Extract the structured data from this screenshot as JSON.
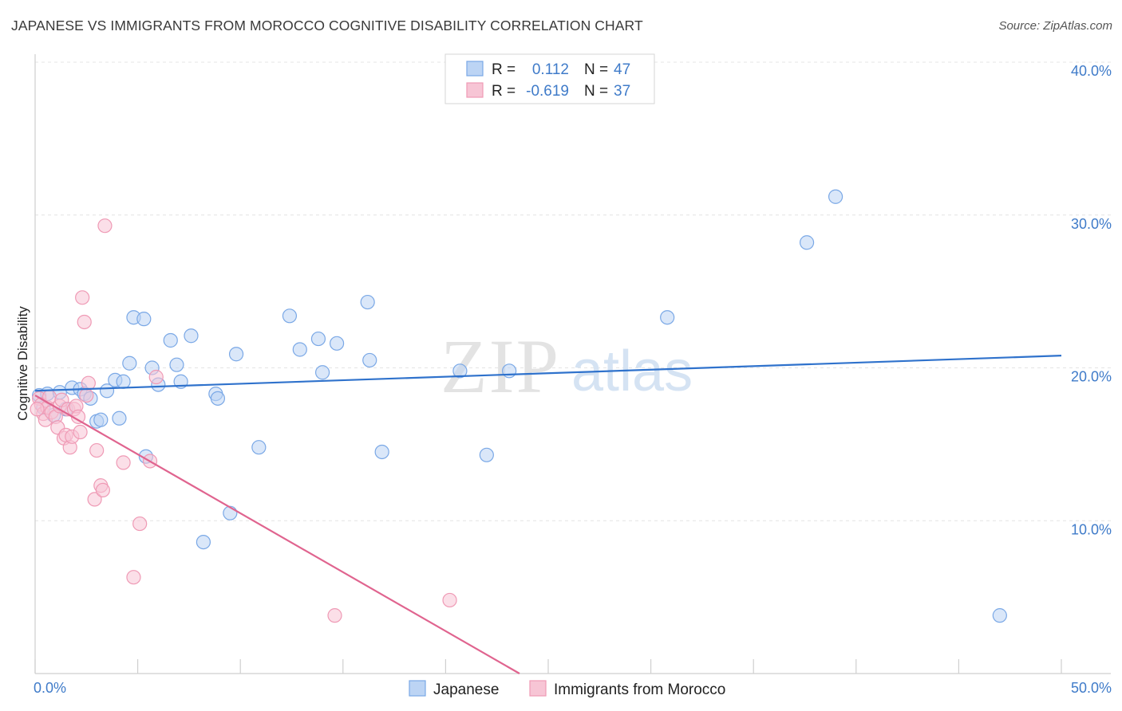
{
  "chart_data": {
    "type": "scatter",
    "title": "JAPANESE VS IMMIGRANTS FROM MOROCCO COGNITIVE DISABILITY CORRELATION CHART",
    "source": "Source: ZipAtlas.com",
    "xlabel": "",
    "ylabel": "Cognitive Disability",
    "xlim": [
      0,
      50
    ],
    "ylim": [
      0,
      40
    ],
    "x_tick_labels": [
      {
        "value": 0,
        "label": "0.0%"
      },
      {
        "value": 50,
        "label": "50.0%"
      }
    ],
    "y_tick_labels": [
      {
        "value": 10,
        "label": "10.0%"
      },
      {
        "value": 20,
        "label": "20.0%"
      },
      {
        "value": 30,
        "label": "30.0%"
      },
      {
        "value": 40,
        "label": "40.0%"
      }
    ],
    "watermark": {
      "zip": "ZIP",
      "atlas": "atlas"
    },
    "legend": {
      "rows": [
        {
          "r_label": "R =",
          "r_value": "0.112",
          "n_label": "N =",
          "n_value": "47"
        },
        {
          "r_label": "R =",
          "r_value": "-0.619",
          "n_label": "N =",
          "n_value": "37"
        }
      ]
    },
    "series": [
      {
        "name": "Japanese",
        "color": "#7aa8e6",
        "fill": "#bcd4f4",
        "line_color": "#2f72cc",
        "trend": {
          "x0": 0,
          "y0": 18.5,
          "x1": 50,
          "y1": 20.8
        },
        "points": [
          [
            0.2,
            18.2
          ],
          [
            0.4,
            17.4
          ],
          [
            0.6,
            18.3
          ],
          [
            0.9,
            16.9
          ],
          [
            1.2,
            18.4
          ],
          [
            1.5,
            17.3
          ],
          [
            1.8,
            18.7
          ],
          [
            2.2,
            18.6
          ],
          [
            2.4,
            18.3
          ],
          [
            2.7,
            18.0
          ],
          [
            3.0,
            16.5
          ],
          [
            3.2,
            16.6
          ],
          [
            3.5,
            18.5
          ],
          [
            3.9,
            19.2
          ],
          [
            4.1,
            16.7
          ],
          [
            4.3,
            19.1
          ],
          [
            4.6,
            20.3
          ],
          [
            4.8,
            23.3
          ],
          [
            5.3,
            23.2
          ],
          [
            5.4,
            14.2
          ],
          [
            5.7,
            20.0
          ],
          [
            6.0,
            18.9
          ],
          [
            6.6,
            21.8
          ],
          [
            6.9,
            20.2
          ],
          [
            7.1,
            19.1
          ],
          [
            7.6,
            22.1
          ],
          [
            8.2,
            8.6
          ],
          [
            8.8,
            18.3
          ],
          [
            8.9,
            18.0
          ],
          [
            9.5,
            10.5
          ],
          [
            9.8,
            20.9
          ],
          [
            10.9,
            14.8
          ],
          [
            12.4,
            23.4
          ],
          [
            12.9,
            21.2
          ],
          [
            13.8,
            21.9
          ],
          [
            14.0,
            19.7
          ],
          [
            14.7,
            21.6
          ],
          [
            16.2,
            24.3
          ],
          [
            16.3,
            20.5
          ],
          [
            16.9,
            14.5
          ],
          [
            20.7,
            19.8
          ],
          [
            22.0,
            14.3
          ],
          [
            23.1,
            19.8
          ],
          [
            30.8,
            23.3
          ],
          [
            37.6,
            28.2
          ],
          [
            39.0,
            31.2
          ],
          [
            47.0,
            3.8
          ]
        ]
      },
      {
        "name": "Immigrants from Morocco",
        "color": "#ef9ab5",
        "fill": "#f7c5d5",
        "line_color": "#e0648f",
        "trend": {
          "x0": 0,
          "y0": 18.2,
          "x1": 23.6,
          "y1": 0
        },
        "points": [
          [
            0.2,
            18.0
          ],
          [
            0.3,
            17.6
          ],
          [
            0.4,
            17.0
          ],
          [
            0.5,
            16.6
          ],
          [
            0.6,
            17.4
          ],
          [
            0.7,
            18.1
          ],
          [
            0.8,
            17.1
          ],
          [
            1.0,
            16.8
          ],
          [
            1.1,
            16.1
          ],
          [
            1.2,
            17.5
          ],
          [
            1.3,
            17.9
          ],
          [
            1.4,
            15.4
          ],
          [
            1.5,
            15.6
          ],
          [
            1.6,
            17.3
          ],
          [
            1.7,
            14.8
          ],
          [
            1.8,
            15.5
          ],
          [
            1.9,
            17.3
          ],
          [
            2.0,
            17.5
          ],
          [
            2.1,
            16.8
          ],
          [
            2.2,
            15.8
          ],
          [
            2.3,
            24.6
          ],
          [
            2.4,
            23.0
          ],
          [
            2.5,
            18.2
          ],
          [
            2.6,
            19.0
          ],
          [
            2.9,
            11.4
          ],
          [
            3.0,
            14.6
          ],
          [
            3.2,
            12.3
          ],
          [
            3.3,
            12.0
          ],
          [
            3.4,
            29.3
          ],
          [
            4.3,
            13.8
          ],
          [
            4.8,
            6.3
          ],
          [
            5.1,
            9.8
          ],
          [
            5.6,
            13.9
          ],
          [
            5.9,
            19.4
          ],
          [
            14.6,
            3.8
          ],
          [
            20.2,
            4.8
          ],
          [
            0.1,
            17.3
          ]
        ]
      }
    ]
  }
}
